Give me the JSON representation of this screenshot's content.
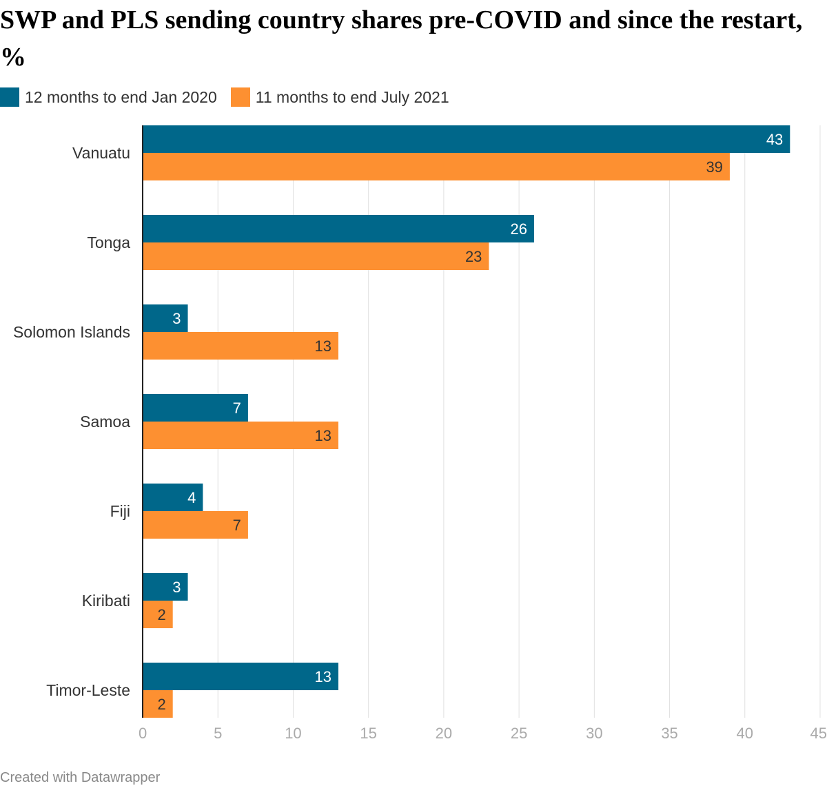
{
  "title": "SWP and PLS sending country shares pre-COVID and since the restart, %",
  "footer": "Created with Datawrapper",
  "chart_data": {
    "type": "bar",
    "orientation": "horizontal",
    "title": "SWP and PLS sending country shares pre-COVID and since the restart, %",
    "categories": [
      "Vanuatu",
      "Tonga",
      "Solomon Islands",
      "Samoa",
      "Fiji",
      "Kiribati",
      "Timor-Leste"
    ],
    "series": [
      {
        "name": "12 months to end Jan 2020",
        "color": "#00678a",
        "values": [
          43,
          26,
          3,
          7,
          4,
          3,
          13
        ]
      },
      {
        "name": "11 months to end July 2021",
        "color": "#fd9031",
        "values": [
          39,
          23,
          13,
          13,
          7,
          2,
          2
        ]
      }
    ],
    "xlim": [
      0,
      45
    ],
    "xticks": [
      "0",
      "5",
      "10",
      "15",
      "20",
      "25",
      "30",
      "35",
      "40",
      "45"
    ],
    "grid": true,
    "legend": "top-left",
    "data_labels": true
  }
}
